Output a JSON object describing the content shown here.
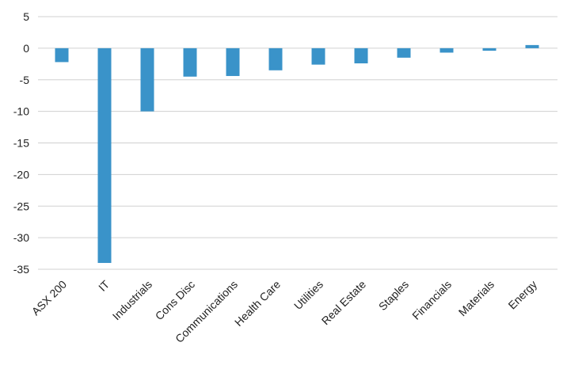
{
  "chart_data": {
    "type": "bar",
    "title": "",
    "xlabel": "",
    "ylabel": "",
    "ylim": [
      -35,
      5
    ],
    "yticks": [
      5,
      0,
      -5,
      -10,
      -15,
      -20,
      -25,
      -30,
      -35
    ],
    "grid": true,
    "legend": "none",
    "bar_color": "#3a93c9",
    "grid_color": "#d0d0d0",
    "categories": [
      "ASX 200",
      "IT",
      "Industrials",
      "Cons Disc",
      "Communications",
      "Health Care",
      "Utilities",
      "Real Estate",
      "Staples",
      "Financials",
      "Materials",
      "Energy"
    ],
    "values": [
      -2.2,
      -34.0,
      -10.0,
      -4.5,
      -4.4,
      -3.5,
      -2.6,
      -2.4,
      -1.5,
      -0.7,
      -0.4,
      0.5
    ]
  }
}
